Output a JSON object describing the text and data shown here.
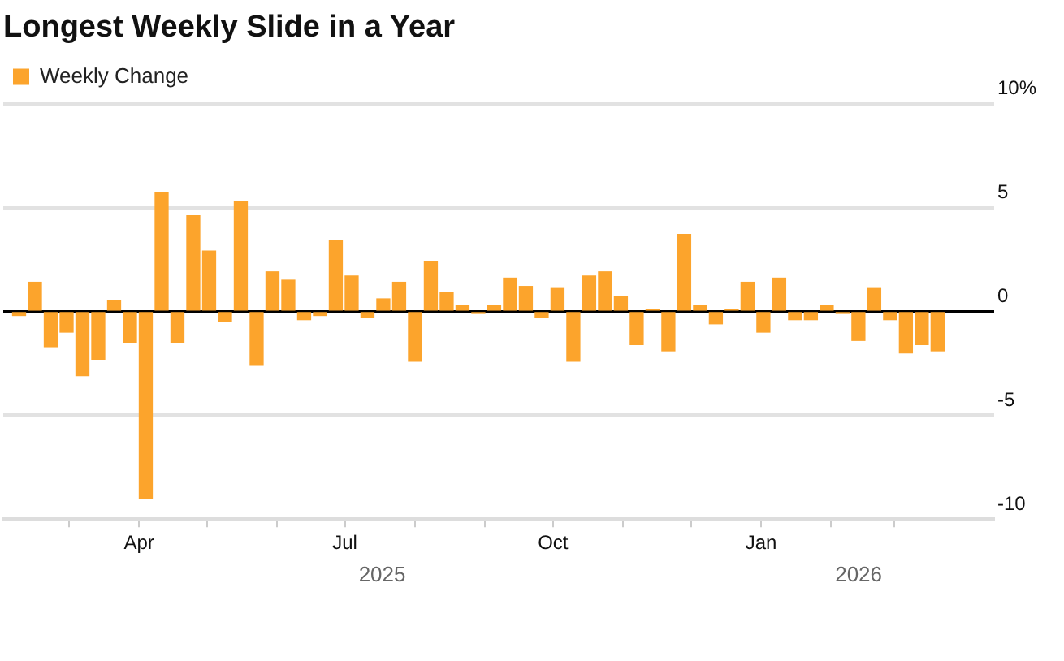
{
  "chart_data": {
    "type": "bar",
    "title": "Longest Weekly Slide in a Year",
    "x": [
      "2025-02-07",
      "2025-02-14",
      "2025-02-21",
      "2025-02-28",
      "2025-03-07",
      "2025-03-14",
      "2025-03-21",
      "2025-03-28",
      "2025-04-04",
      "2025-04-11",
      "2025-04-18",
      "2025-04-25",
      "2025-05-02",
      "2025-05-09",
      "2025-05-16",
      "2025-05-23",
      "2025-05-30",
      "2025-06-06",
      "2025-06-13",
      "2025-06-20",
      "2025-06-27",
      "2025-07-04",
      "2025-07-11",
      "2025-07-18",
      "2025-07-25",
      "2025-08-01",
      "2025-08-08",
      "2025-08-15",
      "2025-08-22",
      "2025-08-29",
      "2025-09-05",
      "2025-09-12",
      "2025-09-19",
      "2025-09-26",
      "2025-10-03",
      "2025-10-10",
      "2025-10-17",
      "2025-10-24",
      "2025-10-31",
      "2025-11-07",
      "2025-11-14",
      "2025-11-21",
      "2025-11-28",
      "2025-12-05",
      "2025-12-12",
      "2025-12-19",
      "2025-12-26",
      "2026-01-02",
      "2026-01-09",
      "2026-01-16",
      "2026-01-23",
      "2026-01-30",
      "2026-02-06",
      "2026-02-13",
      "2026-02-20",
      "2026-02-27",
      "2026-03-06",
      "2026-03-13",
      "2026-03-20"
    ],
    "series": [
      {
        "name": "Weekly Change",
        "color": "#fca42c",
        "values": [
          -0.2,
          1.4,
          -1.7,
          -1.0,
          -3.1,
          -2.3,
          0.5,
          -1.5,
          -9.0,
          5.7,
          -1.5,
          4.6,
          2.9,
          -0.5,
          5.3,
          -2.6,
          1.9,
          1.5,
          -0.4,
          -0.2,
          3.4,
          1.7,
          -0.3,
          0.6,
          1.4,
          -2.4,
          2.4,
          0.9,
          0.3,
          -0.1,
          0.3,
          1.6,
          1.2,
          -0.3,
          1.1,
          -2.4,
          1.7,
          1.9,
          0.7,
          -1.6,
          0.1,
          -1.9,
          3.7,
          0.3,
          -0.6,
          0.1,
          1.4,
          -1.0,
          1.6,
          -0.4,
          -0.4,
          0.3,
          -0.1,
          -1.4,
          1.1,
          -0.4,
          -2.0,
          -1.6,
          -1.9
        ]
      }
    ],
    "xlim": [
      "2025-01-31",
      "2026-04-14"
    ],
    "xticks": [
      {
        "value": "2025-03-01",
        "label": null
      },
      {
        "value": "2025-04-01",
        "label": "Apr"
      },
      {
        "value": "2025-05-01",
        "label": null
      },
      {
        "value": "2025-06-01",
        "label": null
      },
      {
        "value": "2025-07-01",
        "label": "Jul"
      },
      {
        "value": "2025-08-01",
        "label": null
      },
      {
        "value": "2025-09-01",
        "label": null
      },
      {
        "value": "2025-10-01",
        "label": "Oct"
      },
      {
        "value": "2025-11-01",
        "label": null
      },
      {
        "value": "2025-12-01",
        "label": null
      },
      {
        "value": "2026-01-01",
        "label": "Jan"
      },
      {
        "value": "2026-02-01",
        "label": null
      },
      {
        "value": "2026-03-01",
        "label": null
      }
    ],
    "ylim": [
      -10,
      10
    ],
    "yticks": [
      {
        "value": 10,
        "label": "10%"
      },
      5,
      0,
      -5,
      -10
    ],
    "grid": "y",
    "legend": "top left",
    "annotations": [
      "2025",
      "2026"
    ]
  }
}
